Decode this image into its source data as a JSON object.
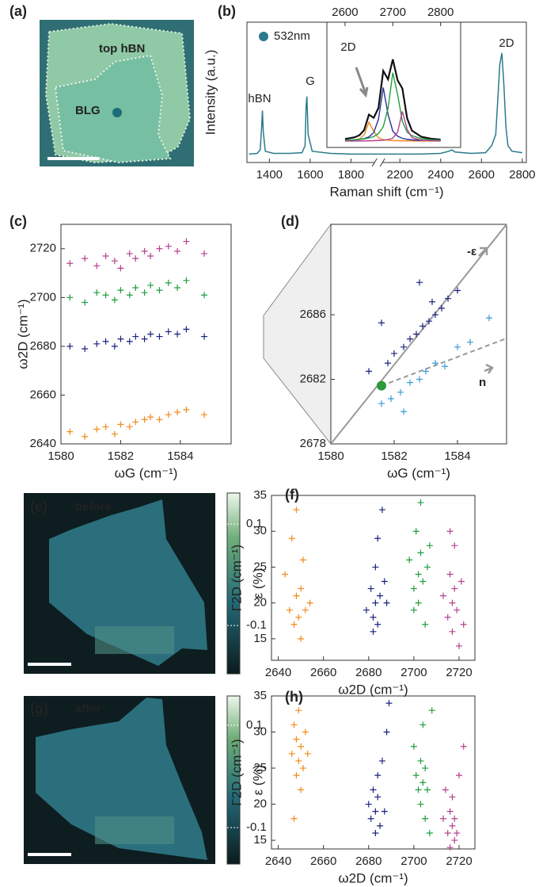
{
  "chart_data": [
    {
      "type": "image",
      "label": "(a)",
      "texts": [
        "top hBN",
        "BLG"
      ]
    },
    {
      "type": "line",
      "label": "(b)",
      "xlabel": "Raman shift (cm⁻¹)",
      "ylabel": "Intensity (a.u.)",
      "legend": "532nm",
      "color": "#2a7a8c",
      "annotations": [
        "hBN",
        "G",
        "2D"
      ],
      "xlim": [
        1290,
        2820
      ],
      "xbreak": [
        1935,
        2095
      ],
      "xticks": [
        1400,
        1600,
        1800,
        2200,
        2400,
        2600,
        2800
      ],
      "ylim": [
        0,
        1
      ],
      "x": [
        1300,
        1340,
        1355,
        1362,
        1366,
        1370,
        1380,
        1420,
        1500,
        1560,
        1575,
        1580,
        1584,
        1590,
        1610,
        1700,
        1800,
        1900,
        1930,
        2100,
        2200,
        2300,
        2400,
        2440,
        2455,
        2470,
        2550,
        2620,
        2650,
        2670,
        2680,
        2690,
        2700,
        2710,
        2720,
        2730,
        2750,
        2800
      ],
      "values": [
        0.06,
        0.065,
        0.09,
        0.25,
        0.37,
        0.22,
        0.08,
        0.065,
        0.065,
        0.07,
        0.12,
        0.4,
        0.47,
        0.2,
        0.08,
        0.065,
        0.06,
        0.06,
        0.06,
        0.06,
        0.06,
        0.06,
        0.065,
        0.08,
        0.09,
        0.075,
        0.065,
        0.07,
        0.12,
        0.2,
        0.45,
        0.7,
        0.78,
        0.55,
        0.25,
        0.12,
        0.08,
        0.07
      ],
      "inset": {
        "annotation": "2D",
        "xlim": [
          2562,
          2842
        ],
        "xticks": [
          2600,
          2700,
          2800
        ],
        "ylim": [
          0,
          1
        ],
        "x": [
          2600,
          2620,
          2630,
          2640,
          2650,
          2660,
          2670,
          2680,
          2690,
          2700,
          2710,
          2720,
          2730,
          2740,
          2760,
          2780,
          2800
        ],
        "series": [
          {
            "color": "#111111",
            "values": [
              0.021,
              0.038,
              0.059,
              0.111,
              0.267,
              0.235,
              0.335,
              0.709,
              0.624,
              0.825,
              0.614,
              0.531,
              0.23,
              0.106,
              0.043,
              0.024,
              0.015
            ]
          },
          {
            "color": "#f28a1a",
            "values": [
              0.005,
              0.012,
              0.023,
              0.062,
              0.19,
              0.1,
              0.033,
              0.015,
              0.009,
              0.005,
              0.004,
              0.003,
              0.002,
              0.002,
              0.001,
              0.001,
              0.001
            ]
          },
          {
            "color": "#2a2f9e",
            "values": [
              0.007,
              0.012,
              0.017,
              0.025,
              0.043,
              0.085,
              0.22,
              0.54,
              0.27,
              0.1,
              0.05,
              0.028,
              0.018,
              0.013,
              0.007,
              0.005,
              0.003
            ]
          },
          {
            "color": "#1f9e3c",
            "values": [
              0.008,
              0.013,
              0.017,
              0.022,
              0.031,
              0.046,
              0.076,
              0.145,
              0.33,
              0.69,
              0.47,
              0.2,
              0.09,
              0.055,
              0.025,
              0.014,
              0.009
            ]
          },
          {
            "color": "#b5408f",
            "values": [
              0.001,
              0.001,
              0.002,
              0.002,
              0.003,
              0.004,
              0.006,
              0.009,
              0.015,
              0.03,
              0.09,
              0.3,
              0.12,
              0.036,
              0.009,
              0.004,
              0.002
            ]
          }
        ]
      }
    },
    {
      "type": "scatter",
      "label": "(c)",
      "xlabel": "ωG (cm⁻¹)",
      "ylabel": "ω2D (cm⁻¹)",
      "xlim": [
        1580,
        1585.7
      ],
      "xticks": [
        1580,
        1582,
        1584
      ],
      "ylim": [
        2640,
        2730
      ],
      "yticks": [
        2640,
        2660,
        2680,
        2700,
        2720
      ],
      "x": [
        1580.3,
        1580.8,
        1581.2,
        1581.5,
        1581.8,
        1582.0,
        1582.3,
        1582.5,
        1582.8,
        1583.0,
        1583.3,
        1583.6,
        1583.9,
        1584.2,
        1584.8
      ],
      "series": [
        {
          "color": "#b5408f",
          "values": [
            2714,
            2716,
            2713,
            2717,
            2715,
            2712,
            2718,
            2716,
            2719,
            2717,
            2720,
            2721,
            2719,
            2723,
            2718
          ]
        },
        {
          "color": "#1f9e3c",
          "values": [
            2700,
            2698,
            2702,
            2701,
            2699,
            2703,
            2701,
            2704,
            2702,
            2705,
            2703,
            2706,
            2704,
            2707,
            2701
          ]
        },
        {
          "color": "#1a237e",
          "values": [
            2680,
            2679,
            2681,
            2682,
            2680,
            2683,
            2682,
            2684,
            2683,
            2685,
            2684,
            2686,
            2685,
            2687,
            2684
          ]
        },
        {
          "color": "#f28a1a",
          "values": [
            2645,
            2643,
            2646,
            2647,
            2644,
            2648,
            2647,
            2649,
            2650,
            2651,
            2650,
            2652,
            2653,
            2654,
            2652
          ]
        }
      ]
    },
    {
      "type": "scatter",
      "label": "(d)",
      "xlabel": "ωG (cm⁻¹)",
      "annotations": [
        "-ε",
        "n"
      ],
      "xlim": [
        1580,
        1585.55
      ],
      "xticks": [
        1580,
        1582,
        1584
      ],
      "ylim": [
        2678,
        2691.6
      ],
      "yticks": [
        2678,
        2682,
        2686
      ],
      "series": [
        {
          "color": "#1a237e",
          "x": [
            1581.2,
            1581.8,
            1582.0,
            1582.3,
            1582.5,
            1582.7,
            1582.9,
            1583.1,
            1583.3,
            1583.5,
            1583.7,
            1584.0,
            1582.8,
            1583.2,
            1581.6
          ],
          "values": [
            2682.5,
            2683,
            2683.6,
            2684,
            2684.5,
            2684.8,
            2685.3,
            2685.6,
            2686,
            2686.4,
            2687,
            2687.5,
            2688,
            2686.8,
            2685.5
          ]
        },
        {
          "color": "#3a9ad5",
          "x": [
            1581.6,
            1581.9,
            1582.2,
            1582.5,
            1582.8,
            1583.0,
            1583.3,
            1583.6,
            1584.0,
            1584.4,
            1585.0,
            1582.3
          ],
          "values": [
            2680.5,
            2680.8,
            2681.2,
            2681.8,
            2682,
            2682.5,
            2683,
            2682.8,
            2684,
            2684.3,
            2685.8,
            2680
          ]
        }
      ],
      "lines": [
        {
          "x": [
            1580,
            1585.55
          ],
          "y": [
            2678,
            2691.6
          ],
          "style": "solid"
        },
        {
          "x": [
            1581.6,
            1585.5
          ],
          "y": [
            2681.6,
            2684.5
          ],
          "style": "dashed"
        }
      ],
      "point": {
        "x": 1581.6,
        "y": 2681.6,
        "color": "#2a9a3a"
      }
    },
    {
      "type": "heatmap",
      "label": "(e)",
      "annotation": "before",
      "colorbar": {
        "label": "ε (%)",
        "lim": [
          -0.195,
          0.161
        ],
        "ticks": [
          0.1,
          -0.1
        ]
      }
    },
    {
      "type": "scatter",
      "label": "(f)",
      "xlabel": "ω2D (cm⁻¹)",
      "ylabel": "Γ2D (cm⁻¹)",
      "xlim": [
        2637,
        2727
      ],
      "xticks": [
        2640,
        2660,
        2680,
        2700,
        2720
      ],
      "ylim": [
        12,
        35
      ],
      "yticks": [
        15,
        20,
        25,
        30,
        35
      ],
      "series": [
        {
          "color": "#f28a1a",
          "x": [
            2643,
            2645,
            2646,
            2647,
            2648,
            2648,
            2649,
            2650,
            2650,
            2651,
            2652,
            2654
          ],
          "values": [
            24,
            19,
            29,
            17,
            21,
            33,
            18,
            22,
            15,
            26,
            19,
            20
          ]
        },
        {
          "color": "#1a237e",
          "x": [
            2679,
            2681,
            2682,
            2683,
            2683,
            2684,
            2684,
            2685,
            2686,
            2687,
            2682,
            2688
          ],
          "values": [
            19,
            22,
            18,
            25,
            20,
            29,
            17,
            21,
            33,
            23,
            16,
            20
          ]
        },
        {
          "color": "#1f9e3c",
          "x": [
            2698,
            2700,
            2701,
            2702,
            2702,
            2703,
            2703,
            2704,
            2705,
            2706,
            2700,
            2707
          ],
          "values": [
            26,
            22,
            30,
            24,
            20,
            27,
            34,
            23,
            17,
            25,
            19,
            28
          ]
        },
        {
          "color": "#b5408f",
          "x": [
            2713,
            2715,
            2716,
            2717,
            2717,
            2718,
            2718,
            2719,
            2720,
            2721,
            2722,
            2716
          ],
          "values": [
            21,
            18,
            24,
            20,
            16,
            22,
            28,
            19,
            14,
            23,
            17,
            30
          ]
        }
      ]
    },
    {
      "type": "heatmap",
      "label": "(g)",
      "annotation": "after",
      "colorbar": {
        "label": "ε (%)",
        "lim": [
          -0.171,
          0.157
        ],
        "ticks": [
          0.1,
          -0.1
        ]
      }
    },
    {
      "type": "scatter",
      "label": "(h)",
      "xlabel": "ω2D (cm⁻¹)",
      "ylabel": "Γ2D (cm⁻¹)",
      "xlim": [
        2637,
        2727
      ],
      "xticks": [
        2640,
        2660,
        2680,
        2700,
        2720
      ],
      "ylim": [
        13.8,
        35
      ],
      "yticks": [
        15,
        20,
        25,
        30,
        35
      ],
      "series": [
        {
          "color": "#f28a1a",
          "x": [
            2646,
            2647,
            2648,
            2648,
            2649,
            2649,
            2650,
            2650,
            2651,
            2652,
            2653,
            2647
          ],
          "values": [
            27,
            31,
            24,
            29,
            26,
            33,
            22,
            28,
            25,
            30,
            27,
            18
          ]
        },
        {
          "color": "#1a237e",
          "x": [
            2680,
            2681,
            2682,
            2683,
            2683,
            2684,
            2684,
            2685,
            2686,
            2687,
            2688,
            2689
          ],
          "values": [
            20,
            18,
            22,
            19,
            16,
            24,
            21,
            17,
            26,
            19,
            30,
            34
          ]
        },
        {
          "color": "#1f9e3c",
          "x": [
            2700,
            2701,
            2702,
            2703,
            2703,
            2704,
            2704,
            2705,
            2705,
            2706,
            2707,
            2708
          ],
          "values": [
            28,
            24,
            22,
            26,
            20,
            31,
            23,
            18,
            25,
            22,
            16,
            33
          ]
        },
        {
          "color": "#b5408f",
          "x": [
            2713,
            2714,
            2715,
            2716,
            2716,
            2717,
            2717,
            2718,
            2718,
            2719,
            2720,
            2722
          ],
          "values": [
            18,
            22,
            16,
            19,
            14,
            17,
            21,
            15,
            18,
            16,
            24,
            28
          ]
        }
      ]
    }
  ]
}
